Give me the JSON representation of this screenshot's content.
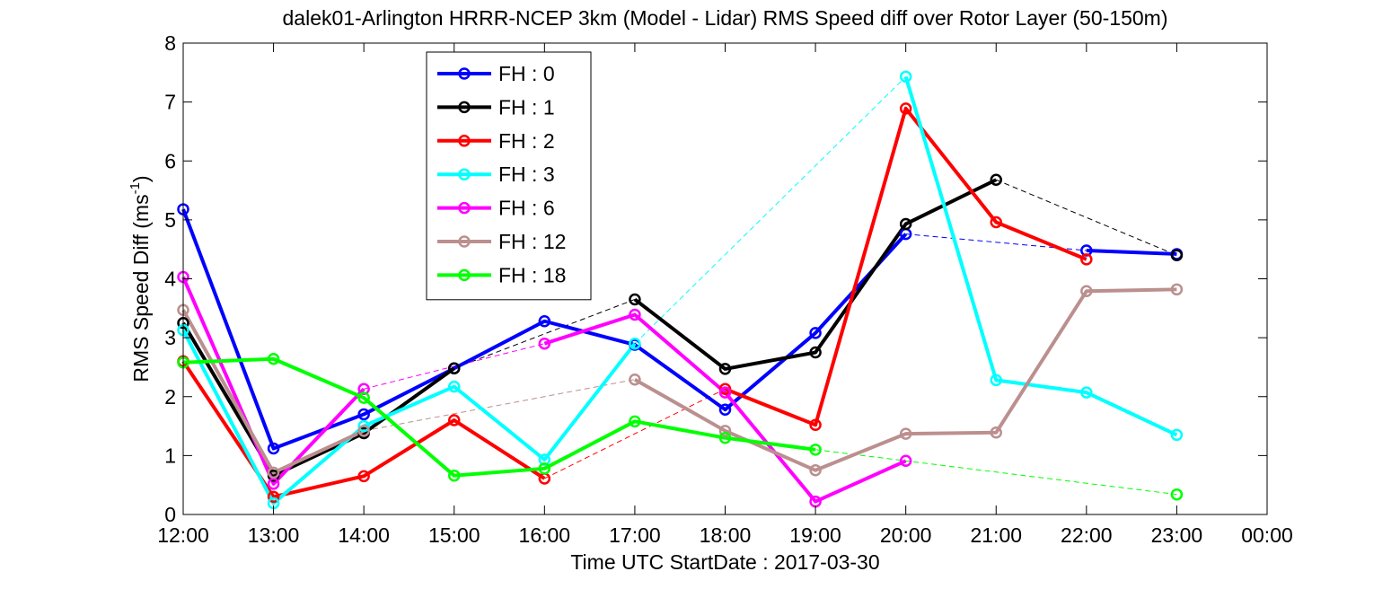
{
  "chart_data": {
    "type": "line",
    "title": "dalek01-Arlington HRRR-NCEP 3km (Model - Lidar) RMS Speed diff over Rotor Layer (50-150m)",
    "xlabel": "Time UTC    StartDate : 2017-03-30",
    "ylabel": "RMS Speed Diff (ms",
    "ylabel_sup": "-1",
    "ylabel_close": ")",
    "xlim": [
      12,
      24
    ],
    "ylim": [
      0,
      8
    ],
    "x_ticks": [
      12,
      13,
      14,
      15,
      16,
      17,
      18,
      19,
      20,
      21,
      22,
      23,
      24
    ],
    "x_tick_labels": [
      "12:00",
      "13:00",
      "14:00",
      "15:00",
      "16:00",
      "17:00",
      "18:00",
      "19:00",
      "20:00",
      "21:00",
      "22:00",
      "23:00",
      "00:00"
    ],
    "y_ticks": [
      0,
      1,
      2,
      3,
      4,
      5,
      6,
      7,
      8
    ],
    "y_tick_labels": [
      "0",
      "1",
      "2",
      "3",
      "4",
      "5",
      "6",
      "7",
      "8"
    ],
    "grid": false,
    "legend_position": "top-left",
    "series": [
      {
        "name": "FH : 0",
        "color": "#0000ff",
        "x": [
          12,
          13,
          14,
          15,
          16,
          17,
          18,
          19,
          20,
          22,
          23
        ],
        "y": [
          5.18,
          1.12,
          1.7,
          2.48,
          3.28,
          2.88,
          1.78,
          3.08,
          4.76,
          4.48,
          4.42
        ]
      },
      {
        "name": "FH : 1",
        "color": "#000000",
        "x": [
          12,
          13,
          14,
          15,
          17,
          18,
          19,
          20,
          21,
          23
        ],
        "y": [
          3.25,
          0.66,
          1.38,
          2.48,
          3.65,
          2.47,
          2.75,
          4.93,
          5.68,
          4.4
        ]
      },
      {
        "name": "FH : 2",
        "color": "#ff0000",
        "x": [
          12,
          13,
          14,
          15,
          16,
          18,
          19,
          20,
          21,
          22
        ],
        "y": [
          2.6,
          0.3,
          0.65,
          1.6,
          0.61,
          2.13,
          1.52,
          6.89,
          4.96,
          4.33
        ]
      },
      {
        "name": "FH : 3",
        "color": "#00ffff",
        "x": [
          12,
          13,
          14,
          15,
          16,
          17,
          20,
          21,
          22,
          23
        ],
        "y": [
          3.13,
          0.19,
          1.5,
          2.17,
          0.93,
          2.9,
          7.43,
          2.28,
          2.07,
          1.35
        ]
      },
      {
        "name": "FH : 6",
        "color": "#ff00ff",
        "x": [
          12,
          13,
          14,
          16,
          17,
          18,
          19,
          20
        ],
        "y": [
          4.03,
          0.52,
          2.13,
          2.9,
          3.39,
          2.07,
          0.22,
          0.91
        ]
      },
      {
        "name": "FH : 12",
        "color": "#bc8f8f",
        "x": [
          12,
          13,
          14,
          17,
          18,
          19,
          20,
          21,
          22,
          23
        ],
        "y": [
          3.47,
          0.71,
          1.42,
          2.29,
          1.42,
          0.75,
          1.37,
          1.39,
          3.79,
          3.82
        ]
      },
      {
        "name": "FH : 18",
        "color": "#00ff00",
        "x": [
          12,
          13,
          14,
          15,
          16,
          17,
          18,
          19,
          23
        ],
        "y": [
          2.58,
          2.64,
          1.98,
          0.66,
          0.78,
          1.58,
          1.3,
          1.1,
          0.34
        ]
      }
    ]
  }
}
